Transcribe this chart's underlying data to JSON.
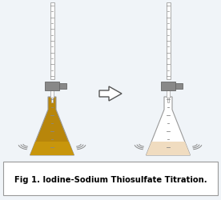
{
  "background_color": "#f0f4f8",
  "caption_box_color": "#ffffff",
  "caption_border_color": "#999999",
  "caption_text": "Fig 1. Iodine-Sodium Thiosulfate Titration.",
  "caption_fontsize": 7.2,
  "arrow_edge_color": "#555555",
  "clamp_color": "#888888",
  "flask_stroke": "#999999",
  "burette_stroke": "#aaaaaa",
  "flask_fill_left": "#b8860b",
  "flask_fill_right": "#f5e6cc",
  "graduation_color": "#888888",
  "vibration_color": "#888888",
  "liquid_left": "#c8960c",
  "liquid_right": "#f0dcc0"
}
